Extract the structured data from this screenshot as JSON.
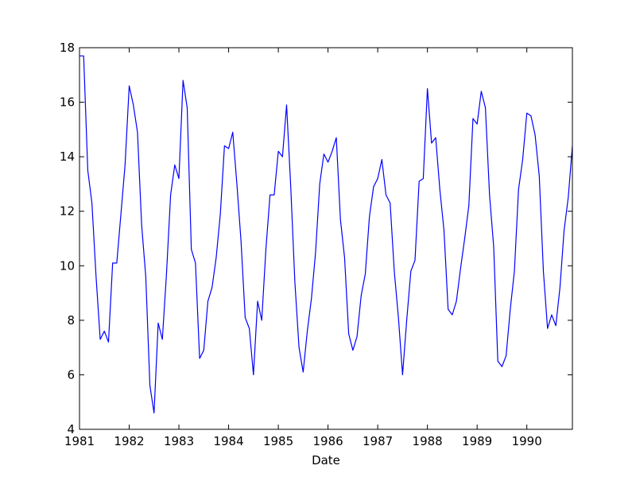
{
  "chart_data": {
    "type": "line",
    "title": "",
    "xlabel": "Date",
    "ylabel": "",
    "xlim": [
      1981.0,
      1990.917
    ],
    "ylim": [
      4,
      18
    ],
    "x_ticks": [
      1981,
      1982,
      1983,
      1984,
      1985,
      1986,
      1987,
      1988,
      1989,
      1990
    ],
    "x_tick_labels": [
      "1981",
      "1982",
      "1983",
      "1984",
      "1985",
      "1986",
      "1987",
      "1988",
      "1989",
      "1990"
    ],
    "y_ticks": [
      4,
      6,
      8,
      10,
      12,
      14,
      16,
      18
    ],
    "y_tick_labels": [
      "4",
      "6",
      "8",
      "10",
      "12",
      "14",
      "16",
      "18"
    ],
    "grid": false,
    "legend": "none",
    "series_color": "#0000ff",
    "x_start": "1981-01",
    "x_step": "monthly",
    "series": [
      {
        "values": [
          17.7,
          17.7,
          13.5,
          12.3,
          9.6,
          7.3,
          7.6,
          7.2,
          10.1,
          10.1,
          11.9,
          13.7,
          16.6,
          15.9,
          14.9,
          11.5,
          9.6,
          5.6,
          4.6,
          7.9,
          7.3,
          9.7,
          12.6,
          13.7,
          13.2,
          16.8,
          15.8,
          10.6,
          10.1,
          6.6,
          6.9,
          8.7,
          9.2,
          10.3,
          11.9,
          14.4,
          14.3,
          14.9,
          13.0,
          10.9,
          8.1,
          7.7,
          6.0,
          8.7,
          8.0,
          10.6,
          12.6,
          12.6,
          14.2,
          14.0,
          15.9,
          12.9,
          9.4,
          7.0,
          6.1,
          7.6,
          8.8,
          10.5,
          13.0,
          14.1,
          13.8,
          14.2,
          14.7,
          11.7,
          10.3,
          7.5,
          6.9,
          7.4,
          8.9,
          9.7,
          11.8,
          12.9,
          13.2,
          13.9,
          12.6,
          12.3,
          9.8,
          8.1,
          6.0,
          8.0,
          9.8,
          10.2,
          13.1,
          13.2,
          16.5,
          14.5,
          14.7,
          12.8,
          11.3,
          8.4,
          8.2,
          8.7,
          9.9,
          11.0,
          12.2,
          15.4,
          15.2,
          16.4,
          15.8,
          12.6,
          10.7,
          6.5,
          6.3,
          6.7,
          8.4,
          9.8,
          12.8,
          13.9,
          15.6,
          15.5,
          14.8,
          13.3,
          9.8,
          7.7,
          8.2,
          7.8,
          9.2,
          11.3,
          12.5,
          14.4
        ]
      }
    ]
  }
}
